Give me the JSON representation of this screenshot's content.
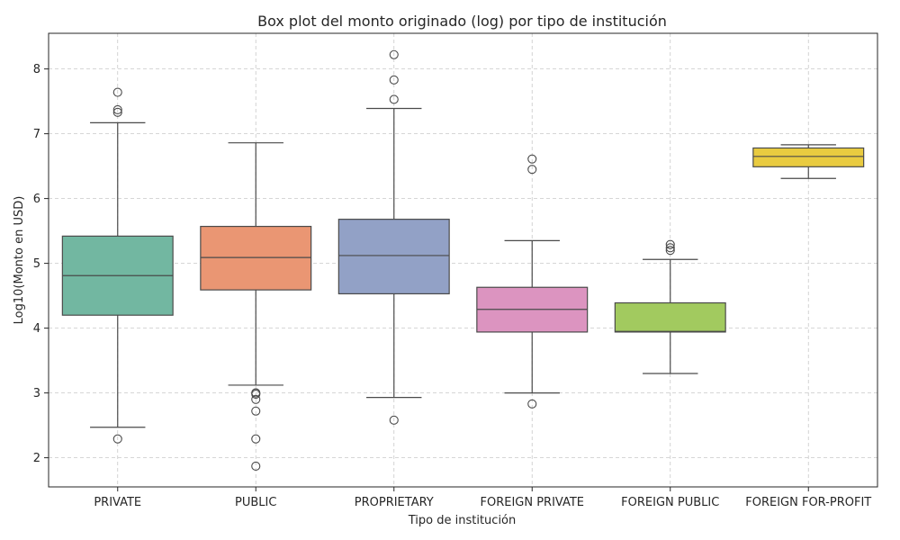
{
  "chart_data": {
    "type": "box",
    "title": "Box plot del monto originado (log) por tipo de institución",
    "xlabel": "Tipo de institución",
    "ylabel": "Log10(Monto en USD)",
    "ylim": [
      1.55,
      8.55
    ],
    "yticks": [
      2,
      3,
      4,
      5,
      6,
      7,
      8
    ],
    "grid": true,
    "categories": [
      "PRIVATE",
      "PUBLIC",
      "PROPRIETARY",
      "FOREIGN PRIVATE",
      "FOREIGN PUBLIC",
      "FOREIGN FOR-PROFIT"
    ],
    "boxes": [
      {
        "category": "PRIVATE",
        "color": "#72b7a1",
        "whisker_low": 2.47,
        "q1": 4.2,
        "median": 4.81,
        "q3": 5.42,
        "whisker_high": 7.17,
        "outliers": [
          2.29,
          7.33,
          7.37,
          7.64
        ]
      },
      {
        "category": "PUBLIC",
        "color": "#ea9673",
        "whisker_low": 3.12,
        "q1": 4.59,
        "median": 5.09,
        "q3": 5.57,
        "whisker_high": 6.86,
        "outliers": [
          1.87,
          2.29,
          2.72,
          2.9,
          2.98,
          3.0,
          3.0
        ]
      },
      {
        "category": "PROPRIETARY",
        "color": "#92a1c6",
        "whisker_low": 2.93,
        "q1": 4.53,
        "median": 5.12,
        "q3": 5.68,
        "whisker_high": 7.39,
        "outliers": [
          2.58,
          7.53,
          7.83,
          8.22
        ]
      },
      {
        "category": "FOREIGN PRIVATE",
        "color": "#dc94c0",
        "whisker_low": 3.0,
        "q1": 3.94,
        "median": 4.29,
        "q3": 4.63,
        "whisker_high": 5.35,
        "outliers": [
          2.83,
          6.45,
          6.61
        ]
      },
      {
        "category": "FOREIGN PUBLIC",
        "color": "#a2ca5f",
        "whisker_low": 3.3,
        "q1": 3.94,
        "median": 3.95,
        "q3": 4.39,
        "whisker_high": 5.06,
        "outliers": [
          5.2,
          5.24,
          5.29
        ]
      },
      {
        "category": "FOREIGN FOR-PROFIT",
        "color": "#e9cb40",
        "whisker_low": 6.31,
        "q1": 6.49,
        "median": 6.65,
        "q3": 6.78,
        "whisker_high": 6.83,
        "outliers": []
      }
    ]
  }
}
